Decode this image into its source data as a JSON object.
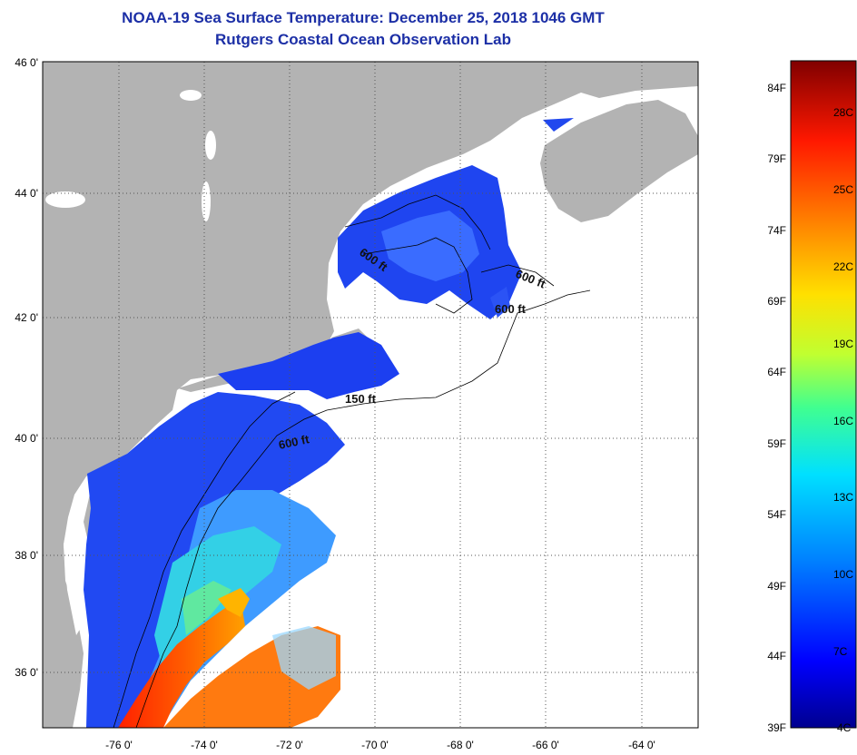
{
  "title": "NOAA-19 Sea Surface Temperature:  December 25, 2018 1046 GMT",
  "subtitle": "Rutgers Coastal Ocean Observation Lab",
  "map": {
    "lat_labels": [
      "46 0'",
      "44 0'",
      "42 0'",
      "40 0'",
      "38 0'",
      "36 0'"
    ],
    "lon_labels": [
      "-76 0'",
      "-74 0'",
      "-72 0'",
      "-70 0'",
      "-68 0'",
      "-66 0'",
      "-64 0'"
    ],
    "contour_labels": [
      "600 ft",
      "600 ft",
      "600 ft",
      "150 ft",
      "600 ft"
    ],
    "land_color": "#b3b3b3",
    "no_data_color": "#ffffff"
  },
  "colorbar": {
    "f_labels": [
      "84F",
      "79F",
      "74F",
      "69F",
      "64F",
      "59F",
      "54F",
      "49F",
      "44F",
      "39F"
    ],
    "c_labels": [
      "28C",
      "25C",
      "22C",
      "19C",
      "16C",
      "13C",
      "10C",
      "7C",
      "4C"
    ],
    "colors": [
      "#00008f",
      "#0000ff",
      "#0080ff",
      "#00e0ff",
      "#40ff90",
      "#c0ff30",
      "#ffe000",
      "#ff8000",
      "#ff1800",
      "#800000"
    ]
  }
}
